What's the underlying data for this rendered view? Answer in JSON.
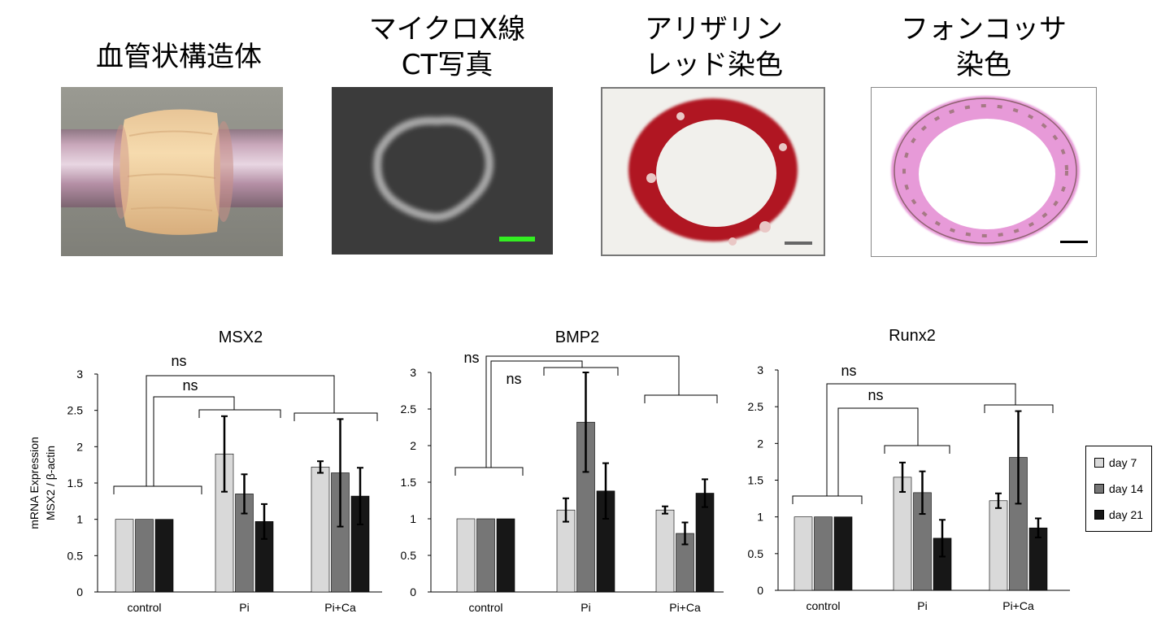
{
  "panels": [
    {
      "title_line1": "血管状構造体",
      "title_line2": ""
    },
    {
      "title_line1": "マイクロX線",
      "title_line2": "CT写真"
    },
    {
      "title_line1": "アリザリン",
      "title_line2": "レッド染色"
    },
    {
      "title_line1": "フォンコッサ",
      "title_line2": "染色"
    }
  ],
  "colors": {
    "day7": "#d9d9d9",
    "day14": "#767676",
    "day21": "#171717",
    "scale_green": "#33ee22",
    "alizarin_red": "#b01820",
    "vonkossa_pink": "#e79ad8"
  },
  "legend": [
    "day 7",
    "day 14",
    "day 21"
  ],
  "ylabel_line1": "mRNA Expression",
  "ylabel_line2": "MSX2 / β-actin",
  "chart_data": [
    {
      "type": "bar",
      "title": "MSX2",
      "categories": [
        "control",
        "Pi",
        "Pi+Ca"
      ],
      "series": [
        {
          "name": "day 7",
          "values": [
            1.0,
            1.9,
            1.72
          ],
          "errors": [
            0.0,
            0.52,
            0.08
          ]
        },
        {
          "name": "day 14",
          "values": [
            1.0,
            1.35,
            1.64
          ],
          "errors": [
            0.0,
            0.27,
            0.74
          ]
        },
        {
          "name": "day 21",
          "values": [
            1.0,
            0.97,
            1.32
          ],
          "errors": [
            0.0,
            0.24,
            0.39
          ]
        }
      ],
      "ylim": [
        0,
        3
      ],
      "yticks": [
        "0",
        "0.5",
        "1",
        "1.5",
        "2",
        "2.5",
        "3"
      ],
      "annotations": [
        "ns",
        "ns"
      ]
    },
    {
      "type": "bar",
      "title": "BMP2",
      "categories": [
        "control",
        "Pi",
        "Pi+Ca"
      ],
      "series": [
        {
          "name": "day 7",
          "values": [
            1.0,
            1.12,
            1.12
          ],
          "errors": [
            0.0,
            0.16,
            0.05
          ]
        },
        {
          "name": "day 14",
          "values": [
            1.0,
            2.32,
            0.8
          ],
          "errors": [
            0.0,
            0.68,
            0.15
          ]
        },
        {
          "name": "day 21",
          "values": [
            1.0,
            1.38,
            1.35
          ],
          "errors": [
            0.0,
            0.38,
            0.19
          ]
        }
      ],
      "ylim": [
        0,
        3
      ],
      "yticks": [
        "0",
        "0.5",
        "1",
        "1.5",
        "2",
        "2.5",
        "3"
      ],
      "annotations": [
        "ns",
        "ns"
      ]
    },
    {
      "type": "bar",
      "title": "Runx2",
      "categories": [
        "control",
        "Pi",
        "Pi+Ca"
      ],
      "series": [
        {
          "name": "day 7",
          "values": [
            1.0,
            1.54,
            1.22
          ],
          "errors": [
            0.0,
            0.2,
            0.1
          ]
        },
        {
          "name": "day 14",
          "values": [
            1.0,
            1.33,
            1.81
          ],
          "errors": [
            0.0,
            0.29,
            0.63
          ]
        },
        {
          "name": "day 21",
          "values": [
            1.0,
            0.71,
            0.85
          ],
          "errors": [
            0.0,
            0.25,
            0.13
          ]
        }
      ],
      "ylim": [
        0,
        3
      ],
      "yticks": [
        "0",
        "0.5",
        "1",
        "1.5",
        "2",
        "2.5",
        "3"
      ],
      "annotations": [
        "ns",
        "ns"
      ]
    }
  ]
}
